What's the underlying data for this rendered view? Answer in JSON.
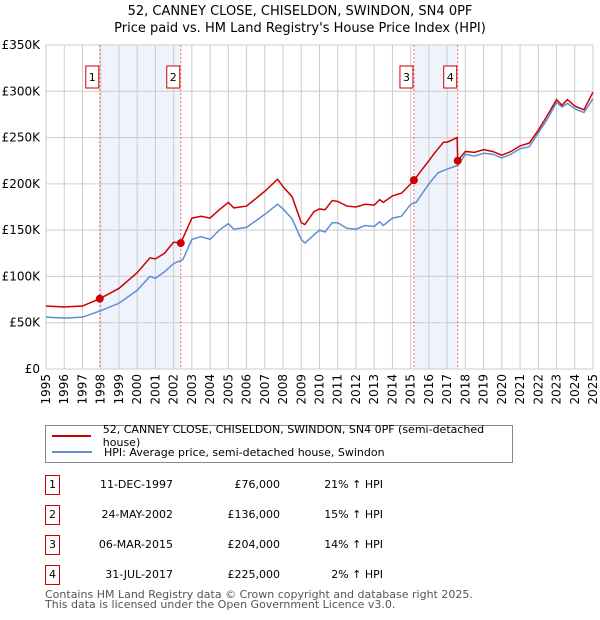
{
  "title": "52, CANNEY CLOSE, CHISELDON, SWINDON, SN4 0PF",
  "subtitle": "Price paid vs. HM Land Registry's House Price Index (HPI)",
  "chart_data": {
    "type": "line",
    "title": "52, CANNEY CLOSE, CHISELDON, SWINDON, SN4 0PF",
    "xlim": [
      1995,
      2025
    ],
    "ylim": [
      0,
      350000
    ],
    "x_ticks": [
      "1995",
      "1996",
      "1997",
      "1998",
      "1999",
      "2000",
      "2001",
      "2002",
      "2003",
      "2004",
      "2005",
      "2006",
      "2007",
      "2008",
      "2009",
      "2010",
      "2011",
      "2012",
      "2013",
      "2014",
      "2015",
      "2016",
      "2017",
      "2018",
      "2019",
      "2020",
      "2021",
      "2022",
      "2023",
      "2024",
      "2025"
    ],
    "y_ticks": [
      {
        "v": 0,
        "l": "£0"
      },
      {
        "v": 50000,
        "l": "£50K"
      },
      {
        "v": 100000,
        "l": "£100K"
      },
      {
        "v": 150000,
        "l": "£150K"
      },
      {
        "v": 200000,
        "l": "£200K"
      },
      {
        "v": 250000,
        "l": "£250K"
      },
      {
        "v": 300000,
        "l": "£300K"
      },
      {
        "v": 350000,
        "l": "£350K"
      }
    ],
    "grid": true,
    "series": [
      {
        "name": "52, CANNEY CLOSE, CHISELDON, SWINDON, SN4 0PF (semi-detached house)",
        "color": "#cc0000",
        "x": [
          1995,
          1996,
          1997,
          1997.95,
          1999,
          2000,
          2000.7,
          2001,
          2001.5,
          2002,
          2002.39,
          2003,
          2003.5,
          2004,
          2004.5,
          2005,
          2005.3,
          2006,
          2006.5,
          2007,
          2007.7,
          2008,
          2008.5,
          2009,
          2009.2,
          2009.7,
          2010,
          2010.3,
          2010.7,
          2011,
          2011.5,
          2012,
          2012.5,
          2013,
          2013.3,
          2013.5,
          2014,
          2014.5,
          2015,
          2015.18,
          2016,
          2016.3,
          2016.8,
          2017,
          2017.55,
          2017.58,
          2018,
          2018.5,
          2019,
          2019.5,
          2020,
          2020.5,
          2021,
          2021.5,
          2022,
          2022.5,
          2023,
          2023.3,
          2023.6,
          2024,
          2024.5,
          2025
        ],
        "y": [
          68000,
          67000,
          68000,
          76000,
          87000,
          104000,
          120000,
          119000,
          125000,
          137000,
          136000,
          163000,
          165000,
          163000,
          172000,
          180000,
          174000,
          176000,
          184000,
          192000,
          205000,
          197000,
          186000,
          158000,
          156000,
          170000,
          173000,
          172000,
          182000,
          181000,
          176000,
          175000,
          178000,
          177000,
          183000,
          180000,
          187000,
          190000,
          200000,
          204000,
          225000,
          233000,
          245000,
          245000,
          250000,
          225000,
          235000,
          234000,
          237000,
          235000,
          231000,
          235000,
          241000,
          244000,
          258000,
          274000,
          291000,
          285000,
          291000,
          284000,
          280000,
          299000
        ]
      },
      {
        "name": "HPI: Average price, semi-detached house, Swindon",
        "color": "#5b8fd6",
        "x": [
          1995,
          1996,
          1997,
          1998,
          1999,
          2000,
          2000.7,
          2001,
          2001.5,
          2002,
          2002.5,
          2003,
          2003.5,
          2004,
          2004.5,
          2005,
          2005.3,
          2006,
          2006.5,
          2007,
          2007.7,
          2008,
          2008.5,
          2009,
          2009.2,
          2009.7,
          2010,
          2010.3,
          2010.7,
          2011,
          2011.5,
          2012,
          2012.5,
          2013,
          2013.3,
          2013.5,
          2014,
          2014.5,
          2015,
          2015.3,
          2016,
          2016.5,
          2017,
          2017.6,
          2018,
          2018.5,
          2019,
          2019.5,
          2020,
          2020.5,
          2021,
          2021.5,
          2022,
          2022.5,
          2023,
          2023.3,
          2023.6,
          2024,
          2024.5,
          2025
        ],
        "y": [
          56000,
          55000,
          56000,
          63000,
          71000,
          85000,
          100000,
          98000,
          105000,
          114000,
          118000,
          140000,
          143000,
          140000,
          150000,
          157000,
          151000,
          153000,
          160000,
          167000,
          178000,
          173000,
          162000,
          140000,
          136000,
          145000,
          150000,
          148000,
          158000,
          158000,
          152000,
          151000,
          155000,
          154000,
          159000,
          155000,
          163000,
          165000,
          178000,
          180000,
          200000,
          212000,
          216000,
          220000,
          232000,
          230000,
          233000,
          232000,
          228000,
          232000,
          238000,
          240000,
          255000,
          270000,
          288000,
          283000,
          287000,
          281000,
          277000,
          292000
        ]
      }
    ],
    "sales": [
      {
        "n": "1",
        "date": "11-DEC-1997",
        "x": 1997.95,
        "price": "£76,000",
        "value": 76000,
        "hpi": "21% ↑ HPI"
      },
      {
        "n": "2",
        "date": "24-MAY-2002",
        "x": 2002.39,
        "price": "£136,000",
        "value": 136000,
        "hpi": "15% ↑ HPI"
      },
      {
        "n": "3",
        "date": "06-MAR-2015",
        "x": 2015.18,
        "price": "£204,000",
        "value": 204000,
        "hpi": "14% ↑ HPI"
      },
      {
        "n": "4",
        "date": "31-JUL-2017",
        "x": 2017.58,
        "price": "£225,000",
        "value": 225000,
        "hpi": "2% ↑ HPI"
      }
    ],
    "legend": "bottom"
  },
  "footer": [
    "Contains HM Land Registry data © Crown copyright and database right 2025.",
    "This data is licensed under the Open Government Licence v3.0."
  ]
}
